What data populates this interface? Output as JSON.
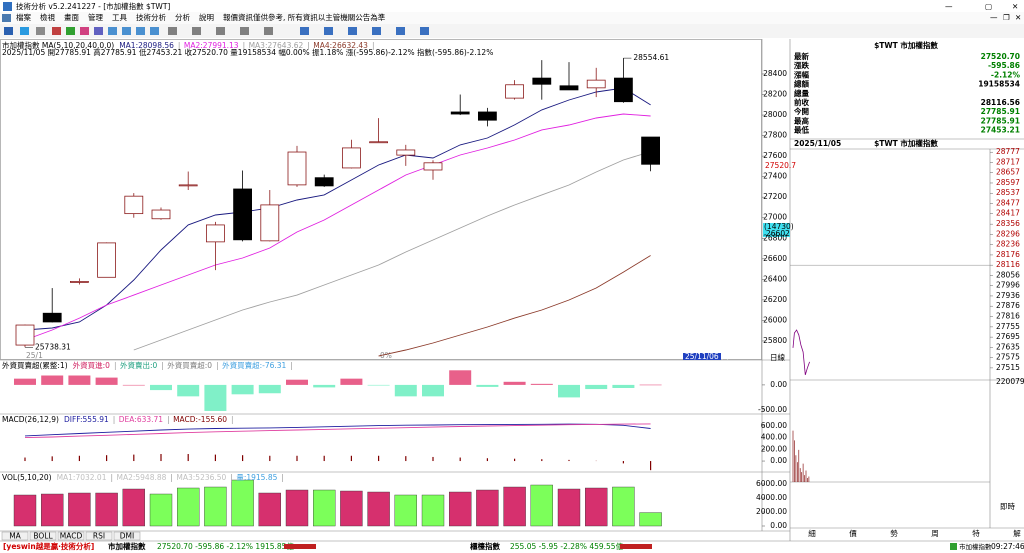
{
  "window": {
    "title": "技術分析 v5.2.241227 - [市加權指數 $TWT]",
    "menu": [
      "檔案",
      "檢視",
      "畫面",
      "管理",
      "工具",
      "技術分析",
      "分析",
      "說明"
    ],
    "notice": "報價資訊僅供參考, 所有資訊以主管機關公告為準",
    "axis": {
      "last": "27520.7",
      "markers": [
        "(14730)",
        "26602"
      ],
      "date": "25/11/06 四",
      "period": "日線",
      "pct": "0%",
      "start": "25/1"
    },
    "tabs": [
      "MA",
      "BOLL",
      "MACD",
      "RSI",
      "DMI"
    ],
    "side_tabs": [
      "細",
      "價",
      "勢",
      "周",
      "特",
      "解"
    ],
    "side_label": "即時",
    "status": {
      "brand": "[yeswin越是贏‧技術分析]",
      "index1": "市加權指數",
      "quote1": "27520.70 -595.86 -2.12% 1915.85億",
      "index2": "櫃檯指數",
      "quote2": "255.05 -5.95 -2.28% 459.55億",
      "ticker": "市加權指數",
      "time": "09:27:46"
    }
  },
  "quote": {
    "title": "$TWT 市加權指數",
    "rows": [
      {
        "label": "最新",
        "value": "27520.70",
        "color": "#008000"
      },
      {
        "label": "漲跌",
        "value": "-595.86",
        "color": "#008000"
      },
      {
        "label": "漲幅",
        "value": "-2.12%",
        "color": "#008000"
      },
      {
        "label": "總額",
        "value": "19158534",
        "color": "#000000"
      },
      {
        "label": "總量"
      },
      {
        "label": "前收",
        "value": "28116.56",
        "color": "#000000"
      },
      {
        "label": "今開",
        "value": "27785.91",
        "color": "#008000"
      },
      {
        "label": "最高",
        "value": "27785.91",
        "color": "#008000"
      },
      {
        "label": "最低",
        "value": "27453.21",
        "color": "#008000"
      }
    ]
  },
  "chart_data": [
    {
      "type": "candlestick",
      "title": "市加權指數 MA(5,10,20,40,0,0)",
      "subtitle": "2025/11/05 開27785.91 高27785.91 低27453.21 收27520.70 量19158534 幅0.00% 振1.18% 漲(-595.86)-2.12% 指數(-595.86)-2.12%",
      "opens": [
        25760,
        26070,
        26370,
        26420,
        27040,
        26990,
        27315,
        26765,
        27280,
        26775,
        27320,
        27390,
        27485,
        27735,
        27610,
        27465,
        28030,
        28030,
        28165,
        28360,
        28285,
        28265,
        28360,
        27785.91
      ],
      "highs": [
        25960,
        26315,
        26410,
        26760,
        27240,
        27100,
        27450,
        26960,
        27460,
        27270,
        27700,
        27420,
        27760,
        27970,
        27710,
        27560,
        28200,
        28070,
        28340,
        28535,
        28515,
        28460,
        28554.61,
        27785.91
      ],
      "lows": [
        25738.31,
        25980,
        26350,
        26420,
        27000,
        26980,
        27270,
        26490,
        26770,
        26770,
        27300,
        27300,
        27480,
        27730,
        27505,
        27370,
        28000,
        27890,
        28150,
        28150,
        28245,
        28175,
        28120,
        27453.21
      ],
      "closes": [
        25955,
        25985,
        26380,
        26755,
        27210,
        27075,
        27320,
        26930,
        26785,
        27125,
        27640,
        27310,
        27680,
        27740,
        27660,
        27535,
        28010,
        27950,
        28295,
        28300,
        28245,
        28340,
        28130,
        27520.7
      ],
      "high_label": "28554.61",
      "low_label": "25738.31",
      "up_color": "#8b1a1a",
      "down_color": "#000000",
      "series": [
        {
          "name": "MA1:28098.56",
          "color": "#1a1a80",
          "values": [
            25907,
            25926,
            25985,
            26150,
            26394,
            26686,
            26930,
            27027,
            27056,
            27095,
            27173,
            27222,
            27368,
            27514,
            27611,
            27582,
            27709,
            27777,
            27904,
            28050,
            28147,
            28225,
            28264,
            28098.56
          ]
        },
        {
          "name": "MA2:27991.13",
          "color": "#e020e0",
          "values": [
            25809,
            25907,
            26023,
            26150,
            26247,
            26345,
            26442,
            26540,
            26608,
            26705,
            26861,
            26978,
            27124,
            27270,
            27416,
            27514,
            27611,
            27679,
            27757,
            27855,
            27903,
            27971,
            28010,
            27991.13
          ]
        },
        {
          "name": "MA3:27643.62",
          "color": "#a0a0a0",
          "values": [
            null,
            null,
            null,
            null,
            25712,
            25809,
            25907,
            26004,
            26101,
            26179,
            26247,
            26345,
            26442,
            26540,
            26666,
            26783,
            26900,
            27017,
            27124,
            27222,
            27319,
            27445,
            27562,
            27643.62
          ]
        },
        {
          "name": "MA4:26632.43",
          "color": "#8b3a2a",
          "values": [
            null,
            null,
            null,
            null,
            null,
            null,
            null,
            null,
            null,
            null,
            null,
            null,
            null,
            25653,
            25712,
            25780,
            25858,
            25936,
            26023,
            26101,
            26199,
            26316,
            26471,
            26632.43
          ]
        }
      ],
      "ylim": [
        25634,
        28731
      ],
      "yticks": [
        25800,
        26000,
        26200,
        26400,
        26600,
        26800,
        27000,
        27200,
        27400,
        27600,
        27800,
        28000,
        28200,
        28400
      ]
    },
    {
      "type": "bar",
      "title": "外資買賣超(累整:1)",
      "legend": [
        {
          "text": "外資買進:0",
          "color": "#d02060"
        },
        {
          "text": "外資賣出:0",
          "color": "#20a080"
        },
        {
          "text": "外資買賣超:0",
          "color": "#808080"
        },
        {
          "text": "外資買賣超:-76.31",
          "color": "#40a0e0"
        }
      ],
      "values": [
        125,
        188,
        188,
        146,
        0,
        -104,
        -229,
        -521,
        -188,
        -167,
        104,
        -50,
        125,
        -10,
        -229,
        -229,
        292,
        -40,
        62,
        21,
        -250,
        -83,
        -62,
        5
      ],
      "color": "#e8608a",
      "negative_color": "#80f0c8",
      "ylim": [
        -542,
        458
      ],
      "yticks": [
        {
          "value": 0,
          "label": "0.00"
        },
        {
          "value": -500,
          "label": "-500.00"
        }
      ]
    },
    {
      "type": "combo",
      "title": "MACD(26,12,9)",
      "series": [
        {
          "name": "DIFF:555.91",
          "color": "#2020a0",
          "style": "line",
          "values": [
            430,
            450,
            470,
            490,
            510,
            530,
            545,
            555,
            560,
            565,
            575,
            585,
            595,
            605,
            612,
            615,
            620,
            622,
            625,
            628,
            630,
            627,
            610,
            555.91
          ]
        },
        {
          "name": "DEA:633.71",
          "color": "#e040a0",
          "style": "line",
          "values": [
            400,
            410,
            425,
            440,
            455,
            470,
            485,
            500,
            510,
            520,
            530,
            540,
            550,
            560,
            570,
            580,
            590,
            598,
            605,
            612,
            620,
            625,
            630,
            633.71
          ]
        },
        {
          "name": "MACD:-155.60",
          "color": "#800000",
          "style": "bar",
          "values": [
            60,
            80,
            90,
            100,
            110,
            120,
            120,
            110,
            100,
            90,
            90,
            90,
            90,
            90,
            84,
            70,
            60,
            48,
            40,
            32,
            20,
            4,
            -40,
            -155.6
          ]
        }
      ],
      "ylim": [
        -170,
        769
      ],
      "yticks": [
        {
          "value": 0,
          "label": "0.00"
        },
        {
          "value": 200,
          "label": "200.00"
        },
        {
          "value": 400,
          "label": "400.00"
        },
        {
          "value": 600,
          "label": "600.00"
        }
      ]
    },
    {
      "type": "bar",
      "title": "VOL(5,10,20)",
      "legend": [
        {
          "text": "MA1:7032.01",
          "color": "#c0c0c0"
        },
        {
          "text": "MA2:5948.88",
          "color": "#c0c0c0"
        },
        {
          "text": "MA3:5236.50",
          "color": "#c0c0c0"
        },
        {
          "text": "量:1915.85",
          "color": "#40a0e0"
        }
      ],
      "values": [
        4429,
        4571,
        4714,
        4714,
        5286,
        4571,
        5429,
        5571,
        6571,
        4714,
        5143,
        5143,
        5000,
        4857,
        4429,
        4429,
        4857,
        5143,
        5571,
        5857,
        5286,
        5429,
        5571,
        1915.85
      ],
      "colors": [
        "#d6306e",
        "#d6306e",
        "#d6306e",
        "#d6306e",
        "#d6306e",
        "#7cff5a",
        "#7cff5a",
        "#7cff5a",
        "#7cff5a",
        "#d6306e",
        "#d6306e",
        "#7cff5a",
        "#d6306e",
        "#d6306e",
        "#7cff5a",
        "#7cff5a",
        "#d6306e",
        "#d6306e",
        "#d6306e",
        "#7cff5a",
        "#d6306e",
        "#d6306e",
        "#7cff5a",
        "#7cff5a"
      ],
      "ylim": [
        0,
        7430
      ],
      "yticks": [
        {
          "value": 0,
          "label": "0.00"
        },
        {
          "value": 2000,
          "label": "2000.00"
        },
        {
          "value": 4000,
          "label": "4000.00"
        },
        {
          "value": 6000,
          "label": "6000.00"
        }
      ]
    },
    {
      "type": "line",
      "title": "$TWT 市加權指數",
      "subtitle": "2025/11/05",
      "x": [
        0,
        2,
        5,
        8,
        11,
        14,
        17,
        20,
        23
      ],
      "values": [
        27632,
        27719,
        27737,
        27708,
        27649,
        27608,
        27474,
        27515,
        27550
      ],
      "color": "#800080",
      "xlim": [
        0,
        270
      ],
      "ylim": [
        27450,
        28790
      ],
      "ref": 28116,
      "up_color": "#b00000",
      "down_color": "#000000",
      "yticks": [
        28777,
        28717,
        28657,
        28597,
        28537,
        28477,
        28417,
        28356,
        28296,
        28236,
        28176,
        28116,
        28056,
        27996,
        27936,
        27876,
        27816,
        27755,
        27695,
        27635,
        27575,
        27515
      ],
      "volume": {
        "x": [
          0,
          2,
          4,
          6,
          8,
          10,
          12,
          14,
          16,
          18,
          20,
          22
        ],
        "values": [
          112000,
          90600,
          58300,
          43200,
          70000,
          30200,
          21600,
          40000,
          15100,
          25000,
          8600,
          12000
        ],
        "color": "#8b1a1a",
        "ylim": [
          0,
          220079
        ],
        "yticks": [
          220079
        ]
      }
    }
  ]
}
